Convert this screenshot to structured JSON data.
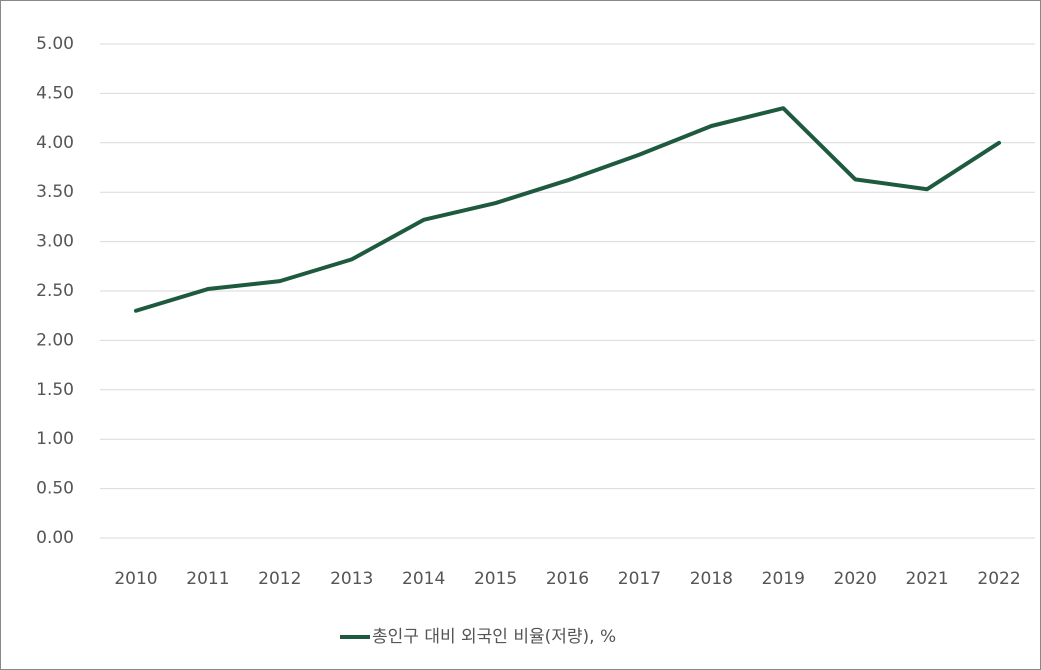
{
  "chart_data": {
    "type": "line",
    "categories": [
      "2010",
      "2011",
      "2012",
      "2013",
      "2014",
      "2015",
      "2016",
      "2017",
      "2018",
      "2019",
      "2020",
      "2021",
      "2022"
    ],
    "series": [
      {
        "name": "총인구 대비 외국인 비율(저량), %",
        "color": "#1e5a3e",
        "values": [
          2.3,
          2.52,
          2.6,
          2.82,
          3.22,
          3.39,
          3.62,
          3.88,
          4.17,
          4.35,
          3.63,
          3.53,
          4.0
        ]
      }
    ],
    "ylim": [
      0,
      5
    ],
    "yticks": [
      {
        "value": 0,
        "label": "0.00"
      },
      {
        "value": 0.5,
        "label": "0.50"
      },
      {
        "value": 1,
        "label": "1.00"
      },
      {
        "value": 1.5,
        "label": "1.50"
      },
      {
        "value": 2,
        "label": "2.00"
      },
      {
        "value": 2.5,
        "label": "2.50"
      },
      {
        "value": 3,
        "label": "3.00"
      },
      {
        "value": 3.5,
        "label": "3.50"
      },
      {
        "value": 4,
        "label": "4.00"
      },
      {
        "value": 4.5,
        "label": "4.50"
      },
      {
        "value": 5,
        "label": "5.00"
      }
    ],
    "grid": true,
    "legend": "bottom"
  }
}
